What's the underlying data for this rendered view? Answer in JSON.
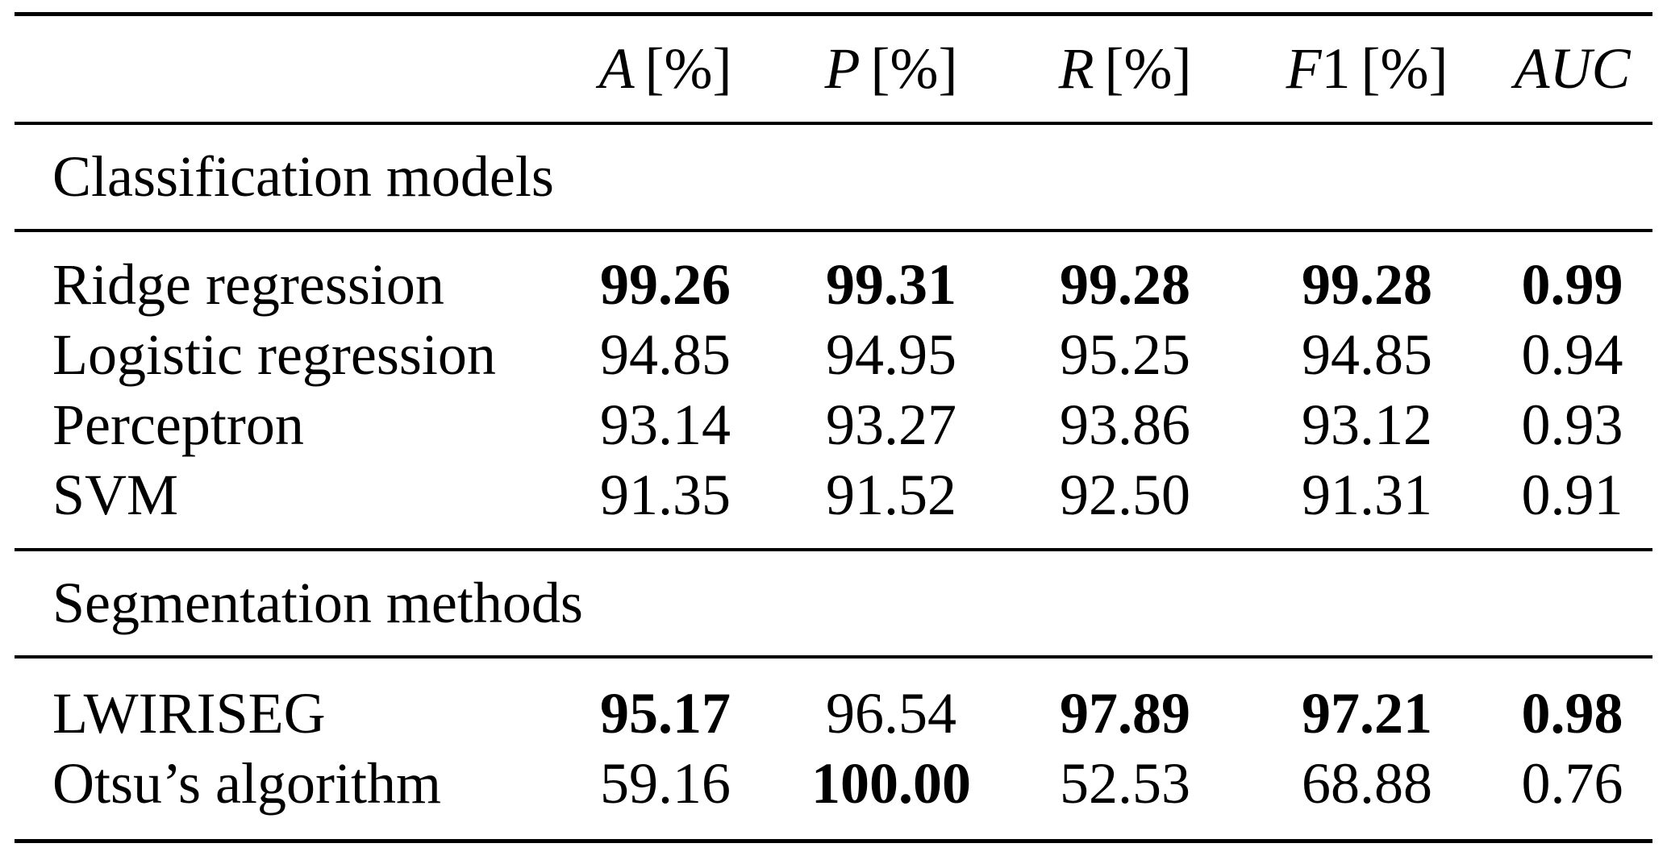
{
  "page": {
    "background_color": "#ffffff",
    "text_color": "#000000"
  },
  "table": {
    "header": {
      "label_column": "",
      "columns": [
        {
          "symbol": "A",
          "suffix": "",
          "unit": "[%]"
        },
        {
          "symbol": "P",
          "suffix": "",
          "unit": "[%]"
        },
        {
          "symbol": "R",
          "suffix": "",
          "unit": "[%]"
        },
        {
          "symbol": "F",
          "suffix": "1",
          "unit": "[%]"
        },
        {
          "symbol": "AUC",
          "suffix": "",
          "unit": ""
        }
      ]
    },
    "sections": [
      {
        "title": "Classification models",
        "rows": [
          {
            "label": "Ridge regression",
            "values": [
              "99.26",
              "99.31",
              "99.28",
              "99.28",
              "0.99"
            ],
            "bold": [
              true,
              true,
              true,
              true,
              true
            ]
          },
          {
            "label": "Logistic regression",
            "values": [
              "94.85",
              "94.95",
              "95.25",
              "94.85",
              "0.94"
            ],
            "bold": [
              false,
              false,
              false,
              false,
              false
            ]
          },
          {
            "label": "Perceptron",
            "values": [
              "93.14",
              "93.27",
              "93.86",
              "93.12",
              "0.93"
            ],
            "bold": [
              false,
              false,
              false,
              false,
              false
            ]
          },
          {
            "label": "SVM",
            "values": [
              "91.35",
              "91.52",
              "92.50",
              "91.31",
              "0.91"
            ],
            "bold": [
              false,
              false,
              false,
              false,
              false
            ]
          }
        ]
      },
      {
        "title": "Segmentation methods",
        "rows": [
          {
            "label": "LWIRISEG",
            "values": [
              "95.17",
              "96.54",
              "97.89",
              "97.21",
              "0.98"
            ],
            "bold": [
              true,
              false,
              true,
              true,
              true
            ]
          },
          {
            "label": "Otsu’s algorithm",
            "values": [
              "59.16",
              "100.00",
              "52.53",
              "68.88",
              "0.76"
            ],
            "bold": [
              false,
              true,
              false,
              false,
              false
            ]
          }
        ]
      }
    ]
  }
}
